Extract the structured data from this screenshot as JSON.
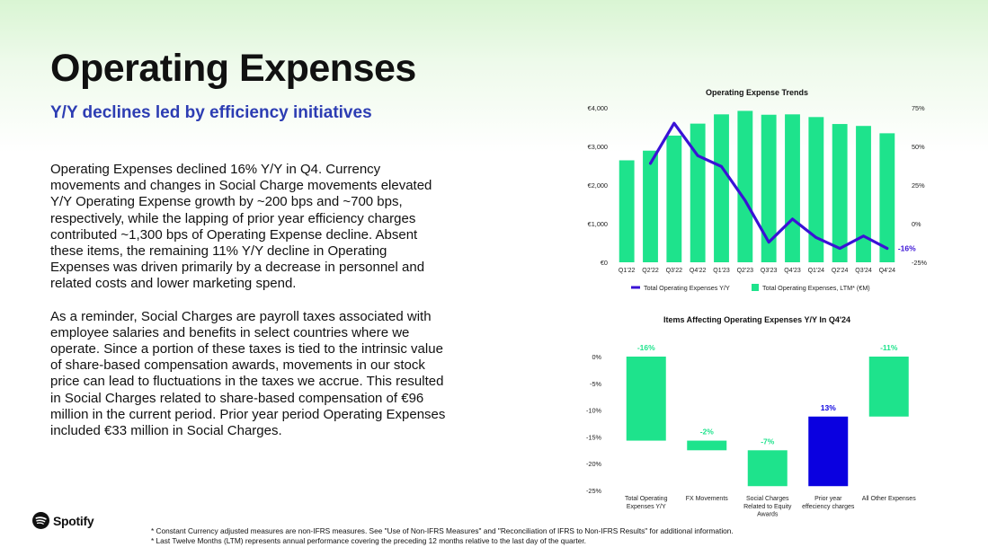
{
  "slide": {
    "title": "Operating Expenses",
    "subtitle": "Y/Y declines led by efficiency initiatives",
    "paragraphs": [
      "Operating Expenses declined 16% Y/Y in Q4. Currency movements and changes in Social Charge movements elevated Y/Y Operating Expense growth by ~200 bps and ~700 bps, respectively, while the lapping of prior year efficiency charges contributed ~1,300 bps of Operating Expense decline. Absent these items, the remaining 11% Y/Y decline in Operating Expenses was driven primarily by a decrease in personnel and related costs and lower marketing spend.",
      "As a reminder, Social Charges are payroll taxes associated with employee salaries and benefits in select countries where we operate. Since a portion of these taxes is tied to the intrinsic value of share-based compensation awards, movements in our stock price can lead to fluctuations in the taxes we accrue. This resulted in Social Charges related to share-based compensation of €96 million in the current period. Prior year period Operating Expenses included €33 million in Social Charges."
    ],
    "logo_text": "Spotify",
    "footnotes": [
      "* Constant Currency adjusted measures are non-IFRS measures. See \"Use of Non-IFRS Measures\" and \"Reconciliation of IFRS to Non-IFRS Results\" for additional information.",
      "* Last Twelve Months (LTM) represents annual performance covering the preceding 12 months relative to the last day of the quarter."
    ]
  },
  "colors": {
    "green": "#1ee38c",
    "purple": "#3a12d6",
    "blue": "#0a00e0",
    "subtitle_blue": "#2d3db3"
  },
  "chart_data": [
    {
      "type": "bar",
      "title": "Operating Expense Trends",
      "categories": [
        "Q1'22",
        "Q2'22",
        "Q3'22",
        "Q4'22",
        "Q1'23",
        "Q2'23",
        "Q3'23",
        "Q4'23",
        "Q1'24",
        "Q2'24",
        "Q3'24",
        "Q4'24"
      ],
      "y_left_ticks": [
        "€4,000",
        "€3,000",
        "€2,000",
        "€1,000",
        "€0"
      ],
      "ylim_left": [
        0,
        4000
      ],
      "y_right_ticks": [
        "75%",
        "50%",
        "25%",
        "0%",
        "-25%"
      ],
      "ylim_right": [
        -25,
        75
      ],
      "series": [
        {
          "name": "Total Operating Expenses, LTM* (€M)",
          "kind": "bar",
          "axis": "left",
          "values": [
            2640,
            2890,
            3280,
            3590,
            3830,
            3920,
            3820,
            3830,
            3760,
            3580,
            3530,
            3340
          ]
        },
        {
          "name": "Total Operating Expenses Y/Y",
          "kind": "line",
          "axis": "right",
          "values": [
            null,
            39,
            65,
            44,
            37,
            15,
            -12,
            3,
            -9,
            -16,
            -8,
            -16
          ]
        }
      ],
      "end_label": "-16%",
      "legend_position": "bottom"
    },
    {
      "type": "bar",
      "subtype": "waterfall",
      "title": "Items Affecting Operating Expenses Y/Y In Q4'24",
      "y_ticks": [
        "0%",
        "-5%",
        "-10%",
        "-15%",
        "-20%",
        "-25%"
      ],
      "ylim": [
        -25,
        0
      ],
      "bars": [
        {
          "label": "Total Operating Expenses Y/Y",
          "label_lines": [
            "Total Operating",
            "Expenses Y/Y"
          ],
          "start": 0,
          "end": -15.7,
          "value_label": "-16%",
          "color": "green",
          "label_color": "green"
        },
        {
          "label": "FX Movements",
          "label_lines": [
            "FX Movements"
          ],
          "start": -15.7,
          "end": -17.5,
          "value_label": "-2%",
          "color": "green",
          "label_color": "green"
        },
        {
          "label": "Social Charges Related to Equity Awards",
          "label_lines": [
            "Social Charges",
            "Related to Equity",
            "Awards"
          ],
          "start": -17.5,
          "end": -24.2,
          "value_label": "-7%",
          "color": "green",
          "label_color": "green"
        },
        {
          "label": "Prior year effeciency charges",
          "label_lines": [
            "Prior year",
            "effeciency charges"
          ],
          "start": -24.2,
          "end": -11.2,
          "value_label": "13%",
          "color": "blue",
          "label_color": "blue"
        },
        {
          "label": "All Other Expenses",
          "label_lines": [
            "All Other Expenses"
          ],
          "start": 0,
          "end": -11.2,
          "value_label": "-11%",
          "color": "green",
          "label_color": "green"
        }
      ]
    }
  ]
}
